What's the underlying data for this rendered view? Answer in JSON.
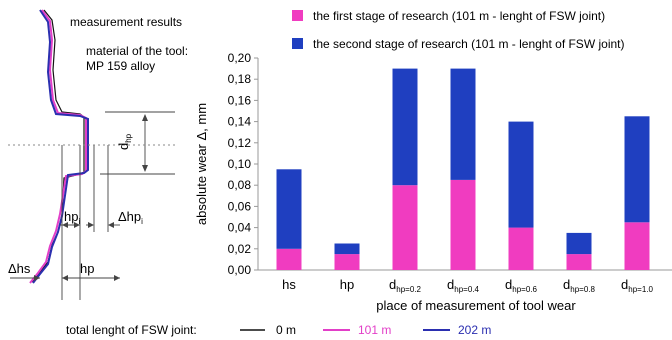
{
  "diagram": {
    "caption": "measurement results",
    "material_line1": "material of the tool:",
    "material_line2": "MP 159 alloy",
    "label_d": "d",
    "label_d_sub": "hp",
    "label_hpi": "hp",
    "label_hpi_sub": "i",
    "label_dhpi": "Δhp",
    "label_dhpi_sub": "i",
    "label_dhs": "Δhs",
    "label_hp": "hp"
  },
  "legend_bottom": {
    "title": "total lenght of FSW joint:",
    "entries": [
      {
        "label": "0 m",
        "color": "#111111"
      },
      {
        "label": "101 m",
        "color": "#e23fc8"
      },
      {
        "label": "202 m",
        "color": "#2b2fb0"
      }
    ]
  },
  "colors": {
    "stage1": "#f03cc0",
    "stage2": "#1f3fc0"
  },
  "chart_data": {
    "type": "bar",
    "stacked": true,
    "categories": [
      "hs",
      "hp",
      "dhp=0.2",
      "dhp=0.4",
      "dhp=0.6",
      "dhp=0.8",
      "dhp=1.0"
    ],
    "category_labels": [
      {
        "main": "hs",
        "sub": ""
      },
      {
        "main": "hp",
        "sub": ""
      },
      {
        "main": "d",
        "sub": "hp=0.2"
      },
      {
        "main": "d",
        "sub": "hp=0.4"
      },
      {
        "main": "d",
        "sub": "hp=0.6"
      },
      {
        "main": "d",
        "sub": "hp=0.8"
      },
      {
        "main": "d",
        "sub": "hp=1.0"
      }
    ],
    "series": [
      {
        "name": "the first stage of research (101 m - lenght of FSW joint)",
        "values": [
          0.02,
          0.015,
          0.08,
          0.085,
          0.04,
          0.015,
          0.045
        ]
      },
      {
        "name": "the second stage of research (101 m - lenght of FSW joint)",
        "values": [
          0.075,
          0.01,
          0.11,
          0.105,
          0.1,
          0.02,
          0.1
        ]
      }
    ],
    "totals": [
      0.095,
      0.025,
      0.19,
      0.19,
      0.14,
      0.035,
      0.145
    ],
    "ylabel": "absolute wear Δ, mm",
    "xlabel": "place of measurement of tool wear",
    "ylim": [
      0,
      0.2
    ],
    "yticks": [
      "0,00",
      "0,02",
      "0,04",
      "0,06",
      "0,08",
      "0,10",
      "0,12",
      "0,14",
      "0,16",
      "0,18",
      "0,20"
    ],
    "ytick_values": [
      0,
      0.02,
      0.04,
      0.06,
      0.08,
      0.1,
      0.12,
      0.14,
      0.16,
      0.18,
      0.2
    ],
    "grid": false,
    "legend_position": "top"
  }
}
